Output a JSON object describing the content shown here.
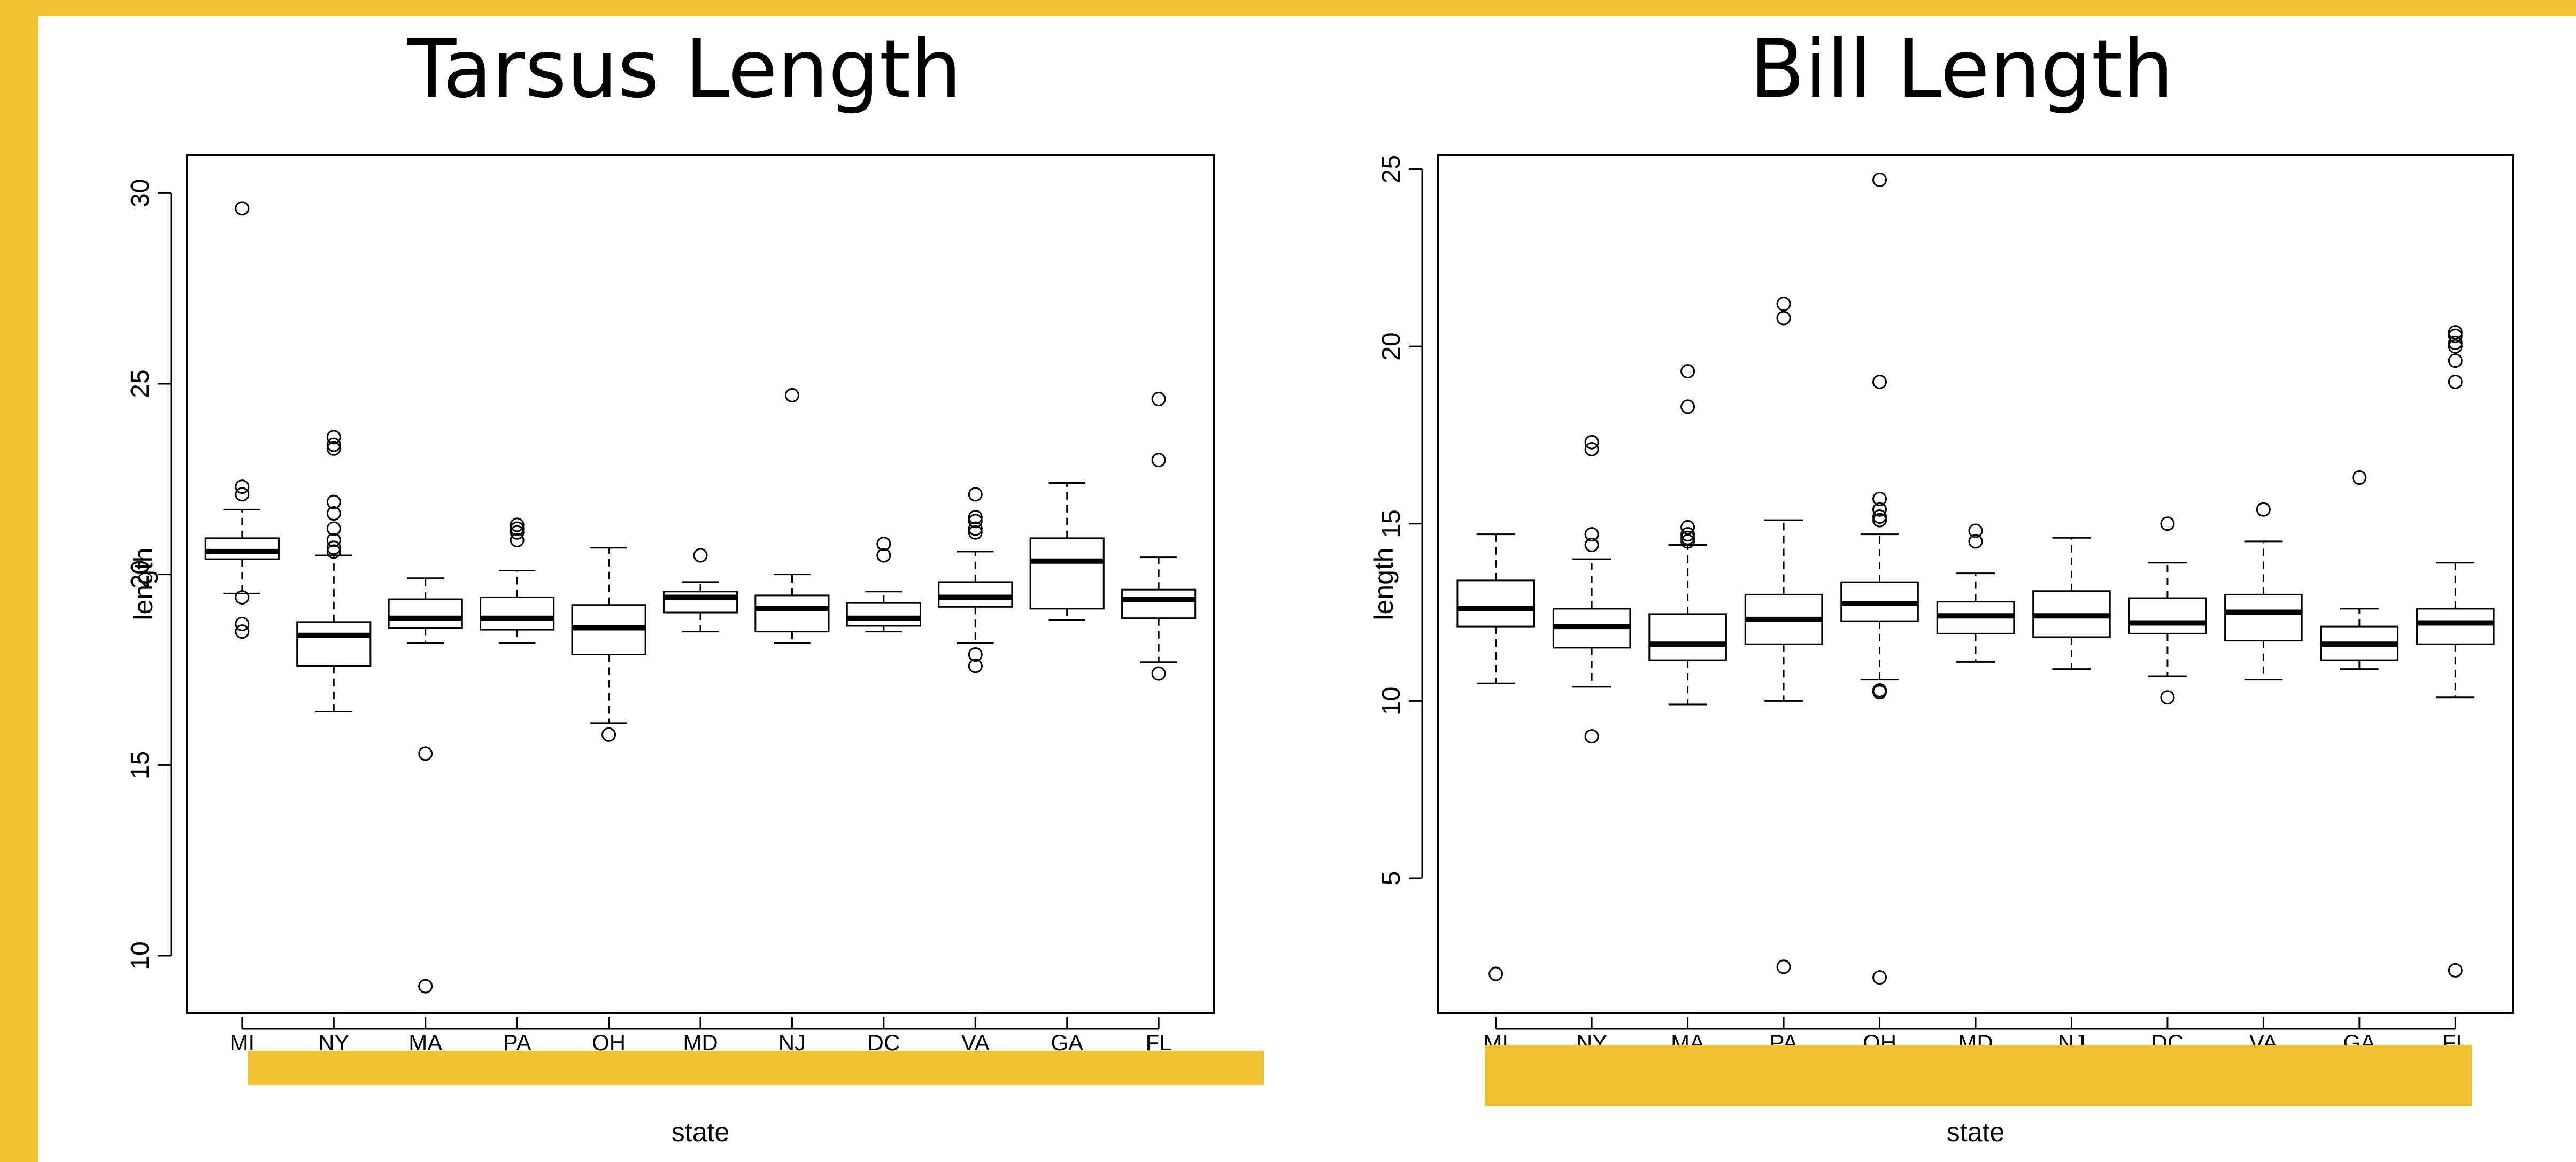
{
  "colors": {
    "accent": "#f0c232",
    "ink": "#000000",
    "background": "#ffffff"
  },
  "chart_data": [
    {
      "type": "boxplot",
      "title": "Tarsus Length",
      "xlabel": "state",
      "ylabel": "length",
      "ylim": [
        8.5,
        31
      ],
      "yticks": [
        10,
        15,
        20,
        25,
        30
      ],
      "categories": [
        "MI",
        "NY",
        "MA",
        "PA",
        "OH",
        "MD",
        "NJ",
        "DC",
        "VA",
        "GA",
        "FL"
      ],
      "boxes": [
        {
          "min": 19.5,
          "q1": 20.4,
          "median": 20.6,
          "q3": 20.95,
          "max": 21.7,
          "outliers": [
            29.6,
            22.3,
            22.1,
            19.4,
            18.7,
            18.5
          ]
        },
        {
          "min": 16.4,
          "q1": 17.6,
          "median": 18.4,
          "q3": 18.75,
          "max": 20.5,
          "outliers": [
            23.6,
            23.4,
            23.3,
            21.9,
            21.6,
            21.2,
            20.9,
            20.7,
            20.6
          ]
        },
        {
          "min": 18.2,
          "q1": 18.6,
          "median": 18.85,
          "q3": 19.35,
          "max": 19.9,
          "outliers": [
            15.3,
            9.2
          ]
        },
        {
          "min": 18.2,
          "q1": 18.55,
          "median": 18.85,
          "q3": 19.4,
          "max": 20.1,
          "outliers": [
            21.3,
            21.2,
            21.1,
            20.9
          ]
        },
        {
          "min": 16.1,
          "q1": 17.9,
          "median": 18.6,
          "q3": 19.2,
          "max": 20.7,
          "outliers": [
            15.8
          ]
        },
        {
          "min": 18.5,
          "q1": 19.0,
          "median": 19.4,
          "q3": 19.55,
          "max": 19.8,
          "outliers": [
            20.5
          ]
        },
        {
          "min": 18.2,
          "q1": 18.5,
          "median": 19.1,
          "q3": 19.45,
          "max": 20.0,
          "outliers": [
            24.7
          ]
        },
        {
          "min": 18.5,
          "q1": 18.65,
          "median": 18.85,
          "q3": 19.25,
          "max": 19.55,
          "outliers": [
            20.8,
            20.5
          ]
        },
        {
          "min": 18.2,
          "q1": 19.15,
          "median": 19.4,
          "q3": 19.8,
          "max": 20.6,
          "outliers": [
            22.1,
            21.5,
            21.4,
            21.2,
            21.1,
            17.9,
            17.6
          ]
        },
        {
          "min": 18.8,
          "q1": 19.1,
          "median": 20.35,
          "q3": 20.95,
          "max": 22.4,
          "outliers": []
        },
        {
          "min": 17.7,
          "q1": 18.85,
          "median": 19.35,
          "q3": 19.6,
          "max": 20.45,
          "outliers": [
            24.6,
            23.0,
            17.4
          ]
        }
      ]
    },
    {
      "type": "boxplot",
      "title": "Bill Length",
      "xlabel": "state",
      "ylabel": "length",
      "ylim": [
        1.2,
        25.4
      ],
      "yticks": [
        5,
        10,
        15,
        20,
        25
      ],
      "categories": [
        "MI",
        "NY",
        "MA",
        "PA",
        "OH",
        "MD",
        "NJ",
        "DC",
        "VA",
        "GA",
        "FL"
      ],
      "boxes": [
        {
          "min": 10.5,
          "q1": 12.1,
          "median": 12.6,
          "q3": 13.4,
          "max": 14.7,
          "outliers": [
            2.3
          ]
        },
        {
          "min": 10.4,
          "q1": 11.5,
          "median": 12.1,
          "q3": 12.6,
          "max": 14.0,
          "outliers": [
            17.3,
            17.1,
            14.7,
            14.4,
            9.0
          ]
        },
        {
          "min": 9.9,
          "q1": 11.15,
          "median": 11.6,
          "q3": 12.45,
          "max": 14.4,
          "outliers": [
            19.3,
            18.3,
            14.9,
            14.7,
            14.6,
            14.5
          ]
        },
        {
          "min": 10.0,
          "q1": 11.6,
          "median": 12.3,
          "q3": 13.0,
          "max": 15.1,
          "outliers": [
            21.2,
            20.8,
            2.5
          ]
        },
        {
          "min": 10.6,
          "q1": 12.25,
          "median": 12.75,
          "q3": 13.35,
          "max": 14.7,
          "outliers": [
            24.7,
            19.0,
            15.7,
            15.4,
            15.2,
            15.1,
            10.3,
            10.25,
            2.2
          ]
        },
        {
          "min": 11.1,
          "q1": 11.9,
          "median": 12.4,
          "q3": 12.8,
          "max": 13.6,
          "outliers": [
            14.8,
            14.5
          ]
        },
        {
          "min": 10.9,
          "q1": 11.8,
          "median": 12.4,
          "q3": 13.1,
          "max": 14.6,
          "outliers": []
        },
        {
          "min": 10.7,
          "q1": 11.9,
          "median": 12.2,
          "q3": 12.9,
          "max": 13.9,
          "outliers": [
            15.0,
            10.1
          ]
        },
        {
          "min": 10.6,
          "q1": 11.7,
          "median": 12.5,
          "q3": 13.0,
          "max": 14.5,
          "outliers": [
            15.4
          ]
        },
        {
          "min": 10.9,
          "q1": 11.15,
          "median": 11.6,
          "q3": 12.1,
          "max": 12.6,
          "outliers": [
            16.3
          ]
        },
        {
          "min": 10.1,
          "q1": 11.6,
          "median": 12.2,
          "q3": 12.6,
          "max": 13.9,
          "outliers": [
            20.4,
            20.3,
            20.1,
            20.0,
            19.6,
            19.0,
            2.4
          ]
        }
      ]
    }
  ]
}
